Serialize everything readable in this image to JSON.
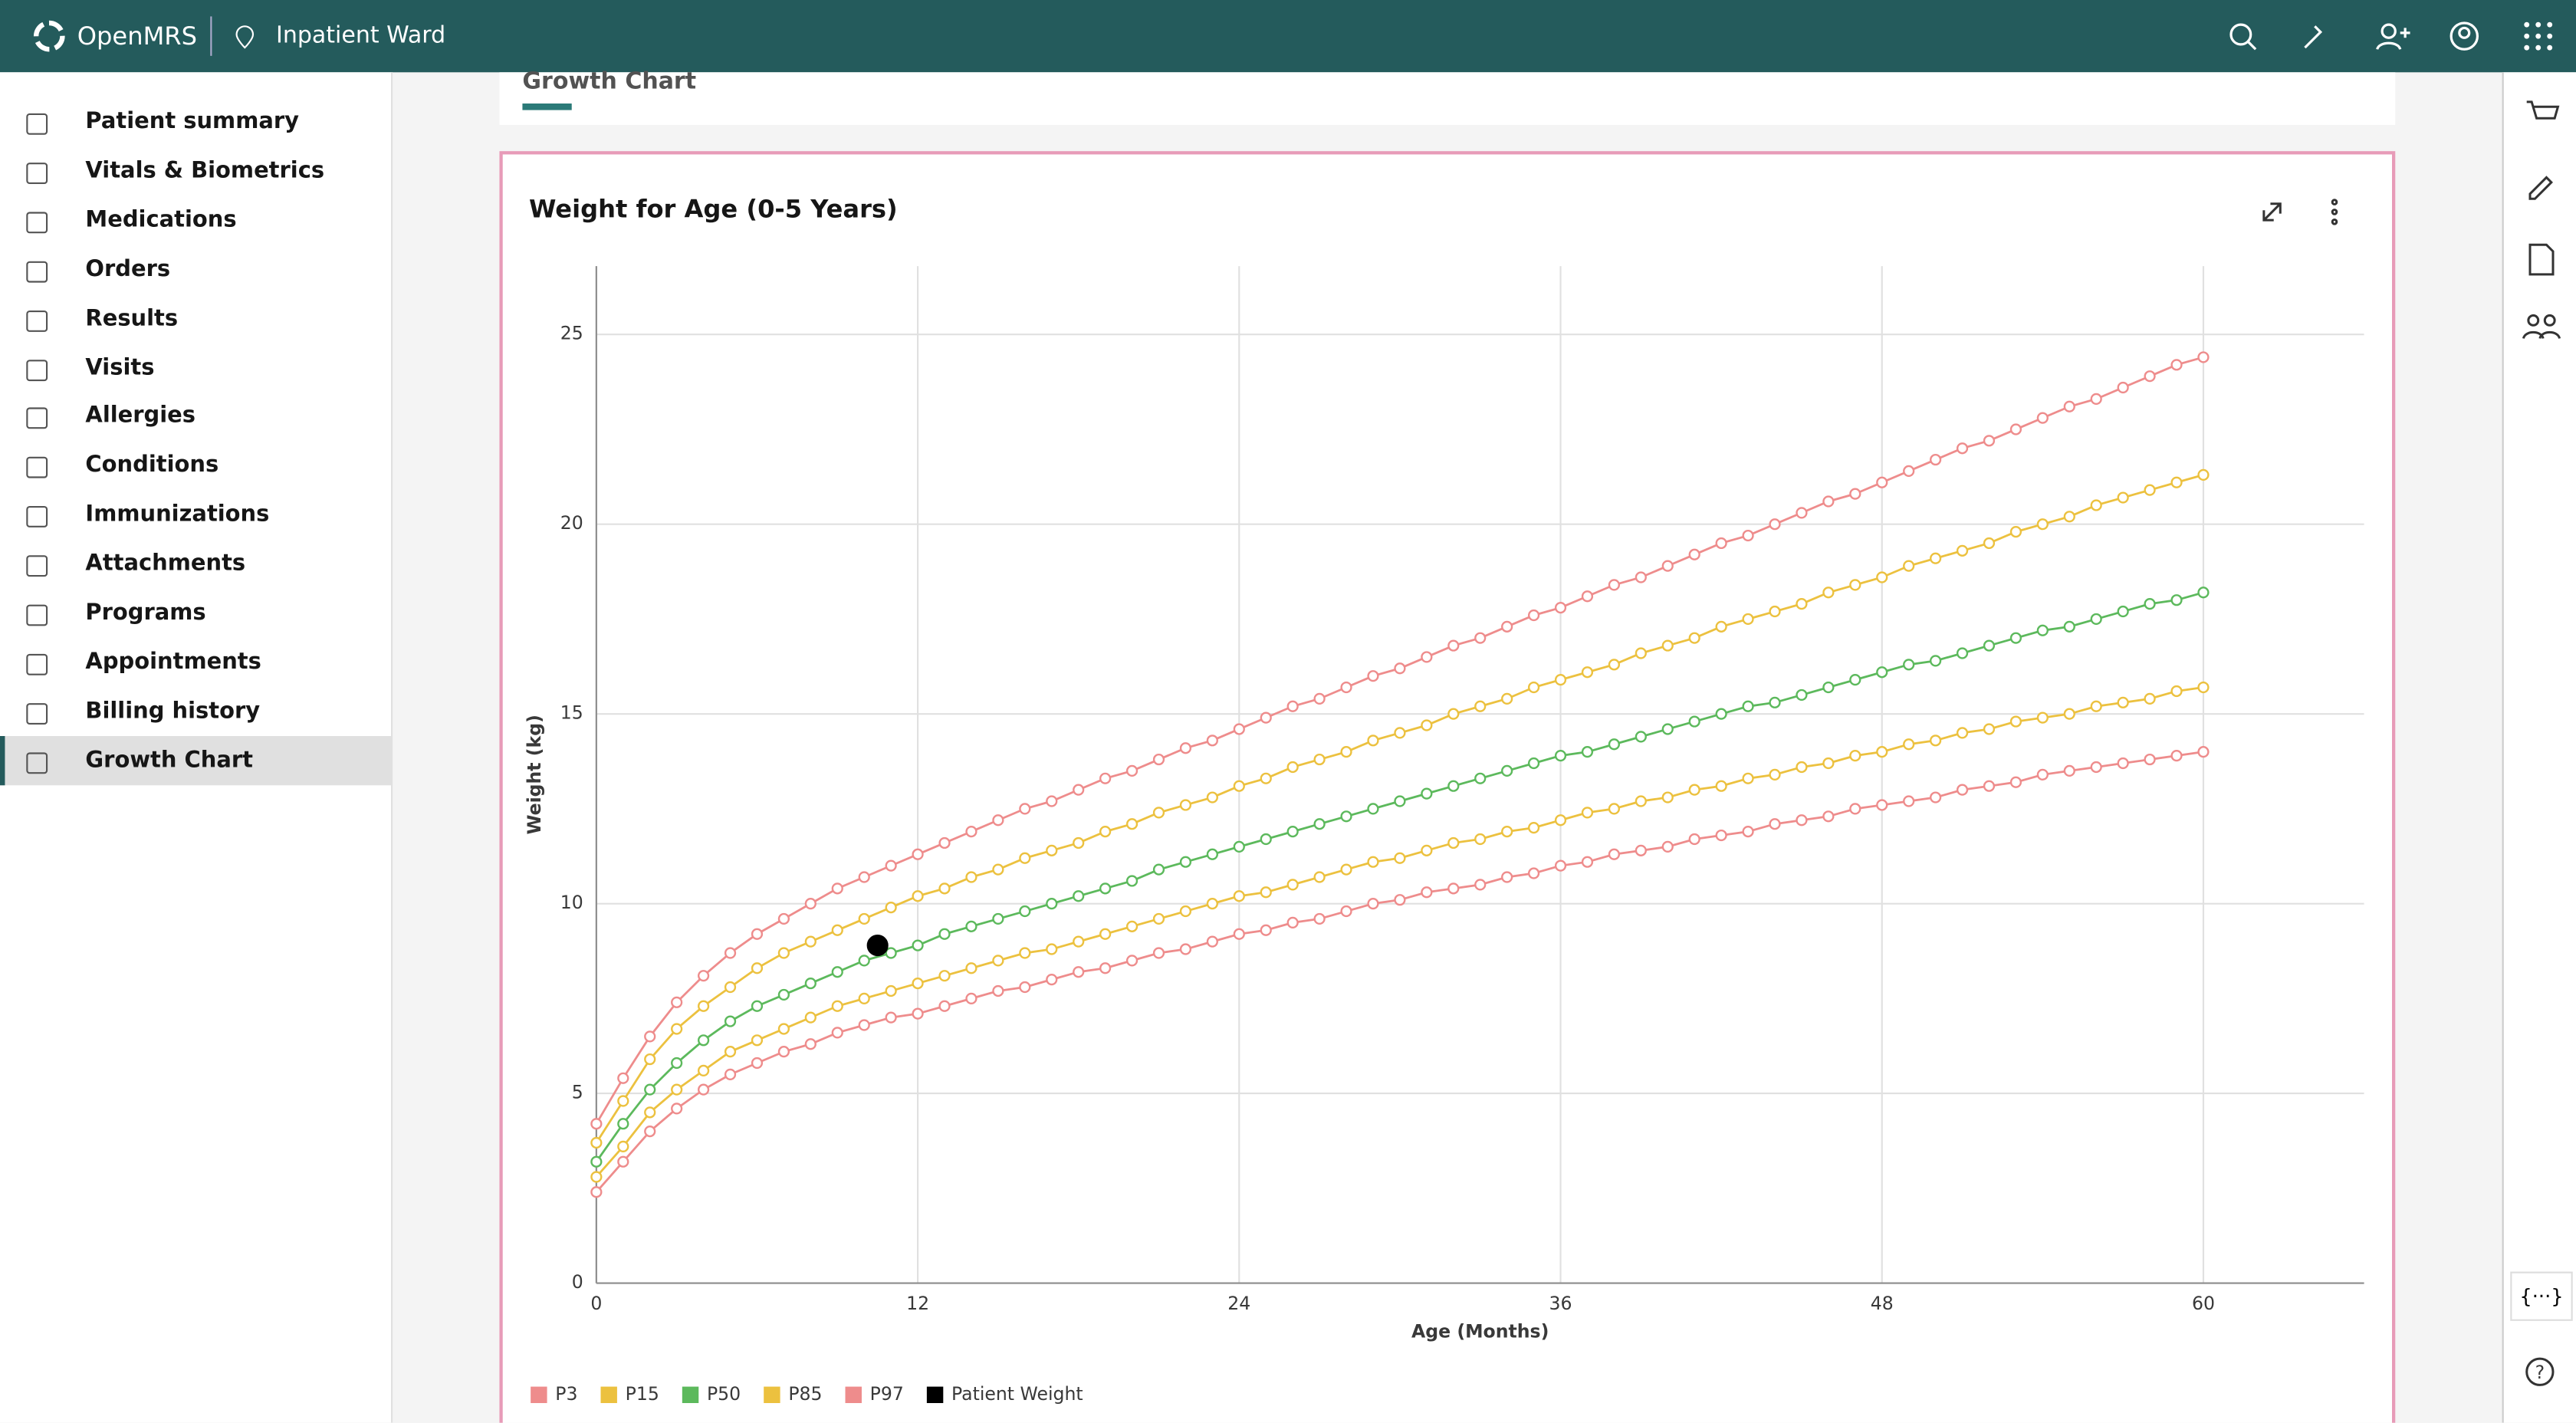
{
  "header": {
    "brand": "OpenMRS",
    "location": "Inpatient Ward"
  },
  "nav": [
    "Patient summary",
    "Vitals & Biometrics",
    "Medications",
    "Orders",
    "Results",
    "Visits",
    "Allergies",
    "Conditions",
    "Immunizations",
    "Attachments",
    "Programs",
    "Appointments",
    "Billing history",
    "Growth Chart"
  ],
  "tab": "Growth Chart",
  "rail_button": "{···}",
  "chart_data": {
    "type": "line",
    "title": "Weight for Age (0-5 Years)",
    "xlabel": "Age (Months)",
    "ylabel": "Weight (kg)",
    "x": [
      0,
      1,
      2,
      3,
      4,
      5,
      6,
      7,
      8,
      9,
      10,
      11,
      12,
      13,
      14,
      15,
      16,
      17,
      18,
      19,
      20,
      21,
      22,
      23,
      24,
      25,
      26,
      27,
      28,
      29,
      30,
      31,
      32,
      33,
      34,
      35,
      36,
      37,
      38,
      39,
      40,
      41,
      42,
      43,
      44,
      45,
      46,
      47,
      48,
      49,
      50,
      51,
      52,
      53,
      54,
      55,
      56,
      57,
      58,
      59,
      60
    ],
    "xlim": [
      0,
      66
    ],
    "xticks": [
      0,
      12,
      24,
      36,
      48,
      60
    ],
    "ylim": [
      0,
      26.8
    ],
    "yticks": [
      0,
      5,
      10,
      15,
      20,
      25
    ],
    "grid": true,
    "legend": "bottom-left",
    "series": [
      {
        "name": "P3",
        "color": "#ee8c8c",
        "values": [
          2.4,
          3.2,
          4.0,
          4.6,
          5.1,
          5.5,
          5.8,
          6.1,
          6.3,
          6.6,
          6.8,
          7.0,
          7.1,
          7.3,
          7.5,
          7.7,
          7.8,
          8.0,
          8.2,
          8.3,
          8.5,
          8.7,
          8.8,
          9.0,
          9.2,
          9.3,
          9.5,
          9.6,
          9.8,
          10.0,
          10.1,
          10.3,
          10.4,
          10.5,
          10.7,
          10.8,
          11.0,
          11.1,
          11.3,
          11.4,
          11.5,
          11.7,
          11.8,
          11.9,
          12.1,
          12.2,
          12.3,
          12.5,
          12.6,
          12.7,
          12.8,
          13.0,
          13.1,
          13.2,
          13.4,
          13.5,
          13.6,
          13.7,
          13.8,
          13.9,
          14.0
        ]
      },
      {
        "name": "P15",
        "color": "#ecc13f",
        "values": [
          2.8,
          3.6,
          4.5,
          5.1,
          5.6,
          6.1,
          6.4,
          6.7,
          7.0,
          7.3,
          7.5,
          7.7,
          7.9,
          8.1,
          8.3,
          8.5,
          8.7,
          8.8,
          9.0,
          9.2,
          9.4,
          9.6,
          9.8,
          10.0,
          10.2,
          10.3,
          10.5,
          10.7,
          10.9,
          11.1,
          11.2,
          11.4,
          11.6,
          11.7,
          11.9,
          12.0,
          12.2,
          12.4,
          12.5,
          12.7,
          12.8,
          13.0,
          13.1,
          13.3,
          13.4,
          13.6,
          13.7,
          13.9,
          14.0,
          14.2,
          14.3,
          14.5,
          14.6,
          14.8,
          14.9,
          15.0,
          15.2,
          15.3,
          15.4,
          15.6,
          15.7
        ]
      },
      {
        "name": "P50",
        "color": "#5cb95c",
        "values": [
          3.2,
          4.2,
          5.1,
          5.8,
          6.4,
          6.9,
          7.3,
          7.6,
          7.9,
          8.2,
          8.5,
          8.7,
          8.9,
          9.2,
          9.4,
          9.6,
          9.8,
          10.0,
          10.2,
          10.4,
          10.6,
          10.9,
          11.1,
          11.3,
          11.5,
          11.7,
          11.9,
          12.1,
          12.3,
          12.5,
          12.7,
          12.9,
          13.1,
          13.3,
          13.5,
          13.7,
          13.9,
          14.0,
          14.2,
          14.4,
          14.6,
          14.8,
          15.0,
          15.2,
          15.3,
          15.5,
          15.7,
          15.9,
          16.1,
          16.3,
          16.4,
          16.6,
          16.8,
          17.0,
          17.2,
          17.3,
          17.5,
          17.7,
          17.9,
          18.0,
          18.2
        ]
      },
      {
        "name": "P85",
        "color": "#ecc13f",
        "values": [
          3.7,
          4.8,
          5.9,
          6.7,
          7.3,
          7.8,
          8.3,
          8.7,
          9.0,
          9.3,
          9.6,
          9.9,
          10.2,
          10.4,
          10.7,
          10.9,
          11.2,
          11.4,
          11.6,
          11.9,
          12.1,
          12.4,
          12.6,
          12.8,
          13.1,
          13.3,
          13.6,
          13.8,
          14.0,
          14.3,
          14.5,
          14.7,
          15.0,
          15.2,
          15.4,
          15.7,
          15.9,
          16.1,
          16.3,
          16.6,
          16.8,
          17.0,
          17.3,
          17.5,
          17.7,
          17.9,
          18.2,
          18.4,
          18.6,
          18.9,
          19.1,
          19.3,
          19.5,
          19.8,
          20.0,
          20.2,
          20.5,
          20.7,
          20.9,
          21.1,
          21.3
        ]
      },
      {
        "name": "P97",
        "color": "#ee8c8c",
        "values": [
          4.2,
          5.4,
          6.5,
          7.4,
          8.1,
          8.7,
          9.2,
          9.6,
          10.0,
          10.4,
          10.7,
          11.0,
          11.3,
          11.6,
          11.9,
          12.2,
          12.5,
          12.7,
          13.0,
          13.3,
          13.5,
          13.8,
          14.1,
          14.3,
          14.6,
          14.9,
          15.2,
          15.4,
          15.7,
          16.0,
          16.2,
          16.5,
          16.8,
          17.0,
          17.3,
          17.6,
          17.8,
          18.1,
          18.4,
          18.6,
          18.9,
          19.2,
          19.5,
          19.7,
          20.0,
          20.3,
          20.6,
          20.8,
          21.1,
          21.4,
          21.7,
          22.0,
          22.2,
          22.5,
          22.8,
          23.1,
          23.3,
          23.6,
          23.9,
          24.2,
          24.4
        ]
      },
      {
        "name": "Patient Weight",
        "color": "#000000",
        "x": [
          10.5
        ],
        "values": [
          8.9
        ]
      }
    ]
  }
}
